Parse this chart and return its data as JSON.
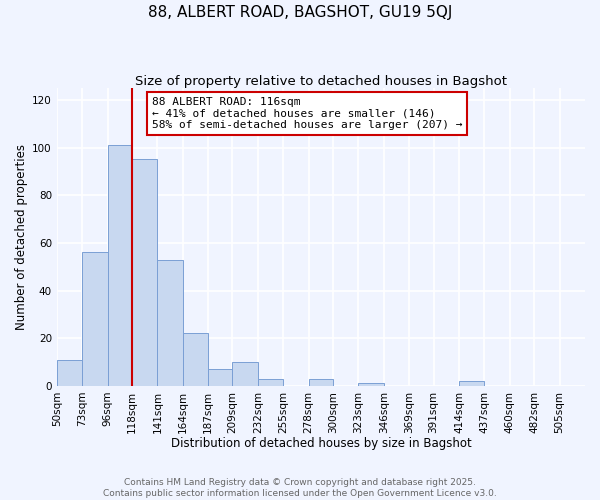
{
  "title": "88, ALBERT ROAD, BAGSHOT, GU19 5QJ",
  "subtitle": "Size of property relative to detached houses in Bagshot",
  "xlabel": "Distribution of detached houses by size in Bagshot",
  "ylabel": "Number of detached properties",
  "bar_left_edges": [
    50,
    73,
    96,
    118,
    141,
    164,
    187,
    209,
    232,
    255,
    278,
    300,
    323,
    346,
    369,
    391,
    414,
    437,
    460,
    482
  ],
  "bar_widths": [
    23,
    23,
    22,
    23,
    23,
    23,
    22,
    23,
    23,
    23,
    22,
    23,
    23,
    23,
    22,
    23,
    23,
    23,
    22,
    23
  ],
  "bar_heights": [
    11,
    56,
    101,
    95,
    53,
    22,
    7,
    10,
    3,
    0,
    3,
    0,
    1,
    0,
    0,
    0,
    2,
    0,
    0,
    0
  ],
  "bar_color": "#c8d8f0",
  "bar_edge_color": "#7a9fd4",
  "property_line_x": 118,
  "property_line_color": "#cc0000",
  "annotation_line1": "88 ALBERT ROAD: 116sqm",
  "annotation_line2": "← 41% of detached houses are smaller (146)",
  "annotation_line3": "58% of semi-detached houses are larger (207) →",
  "annotation_box_color": "#ffffff",
  "annotation_box_edge_color": "#cc0000",
  "ylim": [
    0,
    125
  ],
  "xlim_min": 50,
  "xlim_max": 528,
  "xtick_labels": [
    "50sqm",
    "73sqm",
    "96sqm",
    "118sqm",
    "141sqm",
    "164sqm",
    "187sqm",
    "209sqm",
    "232sqm",
    "255sqm",
    "278sqm",
    "300sqm",
    "323sqm",
    "346sqm",
    "369sqm",
    "391sqm",
    "414sqm",
    "437sqm",
    "460sqm",
    "482sqm",
    "505sqm"
  ],
  "ytick_values": [
    0,
    20,
    40,
    60,
    80,
    100,
    120
  ],
  "background_color": "#f0f4ff",
  "grid_color": "#ffffff",
  "footer_line1": "Contains HM Land Registry data © Crown copyright and database right 2025.",
  "footer_line2": "Contains public sector information licensed under the Open Government Licence v3.0.",
  "title_fontsize": 11,
  "subtitle_fontsize": 9.5,
  "axis_label_fontsize": 8.5,
  "tick_fontsize": 7.5,
  "annotation_fontsize": 8,
  "footer_fontsize": 6.5
}
